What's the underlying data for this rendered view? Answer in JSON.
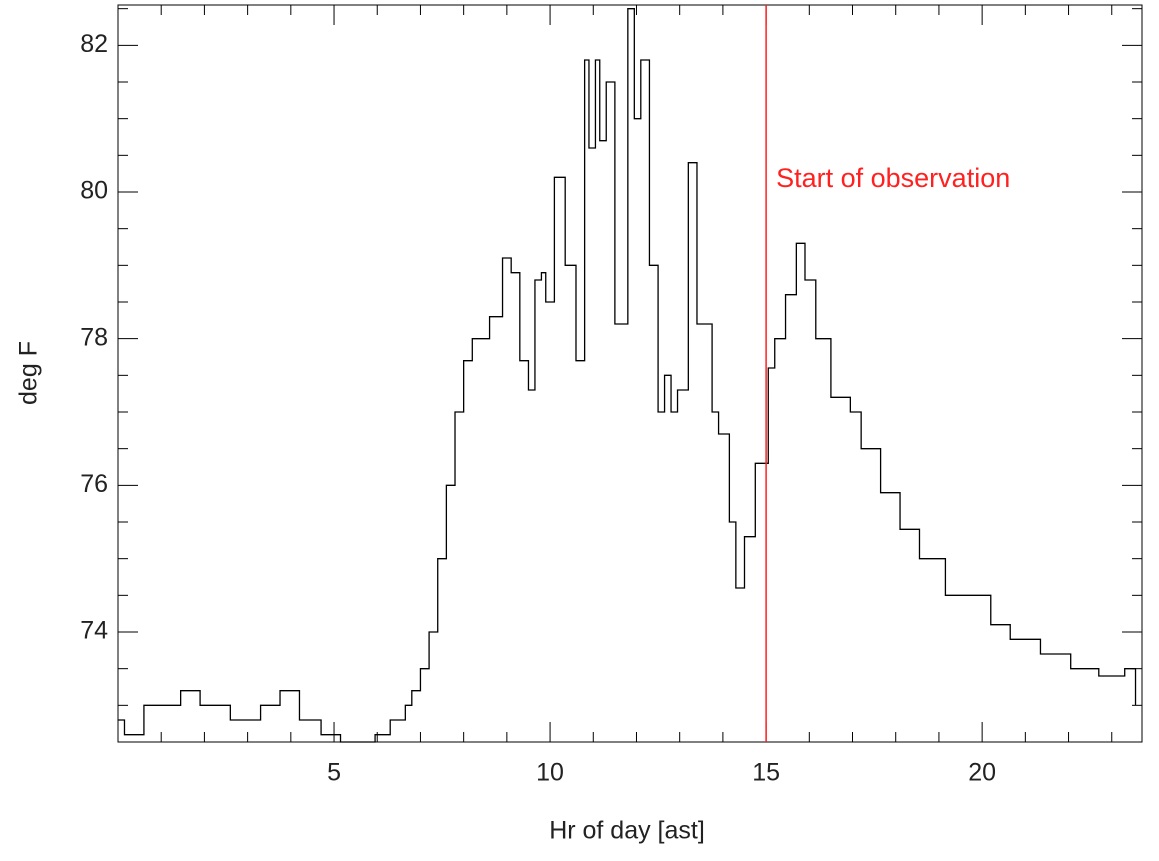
{
  "chart_data": {
    "type": "line",
    "drawstyle": "steps",
    "xlabel": "Hr of day [ast]",
    "ylabel": "deg F",
    "annotation": "Start of observation",
    "vline": 15,
    "vline_color": "#ff2020",
    "color": "#000000",
    "x": [
      0,
      0.15,
      0.6,
      1.45,
      1.9,
      2.6,
      3.3,
      3.75,
      4.2,
      4.7,
      5.15,
      5.95,
      6.3,
      6.65,
      6.8,
      7.0,
      7.2,
      7.4,
      7.6,
      7.8,
      8.0,
      8.2,
      8.5,
      8.6,
      8.9,
      9.1,
      9.3,
      9.5,
      9.65,
      9.8,
      9.9,
      10.1,
      10.35,
      10.6,
      10.8,
      10.9,
      11.05,
      11.15,
      11.3,
      11.5,
      11.8,
      11.95,
      12.1,
      12.3,
      12.5,
      12.65,
      12.8,
      12.95,
      13.2,
      13.4,
      13.6,
      13.75,
      13.9,
      14.15,
      14.3,
      14.5,
      14.75,
      15.05,
      15.2,
      15.45,
      15.7,
      15.9,
      16.15,
      16.5,
      16.95,
      17.2,
      17.65,
      18.1,
      18.55,
      19.15,
      19.5,
      20.2,
      20.65,
      21.35,
      22.05,
      22.7,
      23.3,
      23.55
    ],
    "values": [
      72.8,
      72.6,
      73.0,
      73.2,
      73.0,
      72.8,
      73.0,
      73.2,
      72.8,
      72.6,
      72.5,
      72.6,
      72.8,
      73.0,
      73.2,
      73.5,
      74.0,
      75.0,
      76.0,
      77.0,
      77.7,
      78.0,
      78.0,
      78.3,
      79.1,
      78.9,
      77.7,
      77.3,
      78.8,
      78.9,
      78.5,
      80.2,
      79.0,
      77.7,
      81.8,
      80.6,
      81.8,
      80.7,
      81.5,
      78.2,
      82.5,
      81.0,
      81.8,
      79.0,
      77.0,
      77.5,
      77.0,
      77.3,
      80.4,
      78.2,
      78.2,
      77.0,
      76.7,
      75.5,
      74.6,
      75.3,
      76.3,
      77.6,
      78.0,
      78.6,
      79.3,
      78.8,
      78.0,
      77.2,
      77.0,
      76.5,
      75.9,
      75.4,
      75.0,
      74.5,
      74.5,
      74.1,
      73.9,
      73.7,
      73.5,
      73.4,
      73.5,
      73.0
    ],
    "xlim": [
      0,
      23.7
    ],
    "ylim": [
      72.5,
      82.55
    ],
    "xticks": [
      5,
      10,
      15,
      20
    ],
    "yticks": [
      74,
      76,
      78,
      80,
      82
    ],
    "xminorticks": [
      1,
      2,
      3,
      4,
      6,
      7,
      8,
      9,
      11,
      12,
      13,
      14,
      16,
      17,
      18,
      19,
      21,
      22,
      23
    ],
    "yminorticks": [
      73,
      73.5,
      74.5,
      75,
      75.5,
      76.5,
      77,
      77.5,
      78.5,
      79,
      79.5,
      80.5,
      81,
      81.5,
      82.5
    ]
  }
}
